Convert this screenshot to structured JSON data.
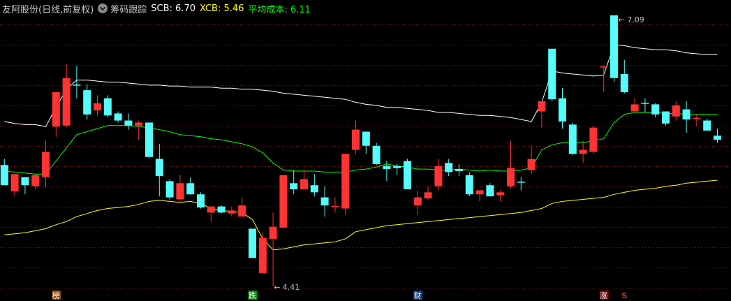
{
  "header": {
    "title": "友阿股份(日线,前复权)",
    "dropdown_icon": "chevron-down-circle-icon",
    "indicator": "筹码跟踪",
    "scb": "SCB: 6.70",
    "xcb": "XCB: 5.46",
    "avg": "平均成本: 6.11"
  },
  "colors": {
    "up": "#ff3333",
    "down": "#54fcfc",
    "scb": "#ffffff",
    "xcb": "#ffff00",
    "avg": "#00ff00",
    "grid": "#a01010",
    "background": "#000000"
  },
  "annotations": {
    "high_label": "7.09",
    "low_label": "4.41",
    "high_index": 59,
    "low_index": 26
  },
  "markers": [
    {
      "label": "榜",
      "index": 5,
      "bg": "#8b4a10",
      "color": "#ffffff"
    },
    {
      "label": "跌",
      "index": 24,
      "bg": "#0a8a0a",
      "color": "#ffffff"
    },
    {
      "label": "财",
      "index": 40,
      "bg": "#0a3a7a",
      "color": "#ffffff"
    },
    {
      "label": "涨",
      "index": 58,
      "bg": "#7a0a0a",
      "color": "#ffffff"
    },
    {
      "label": "S",
      "index": 60,
      "bg": "",
      "color": "#ff2020"
    }
  ],
  "chart_data": {
    "type": "candlestick",
    "grid": true,
    "ylim": [
      4.41,
      7.09
    ],
    "candles": [
      [
        5.61,
        5.67,
        5.41,
        5.41,
        "down"
      ],
      [
        5.35,
        5.52,
        5.3,
        5.52,
        "up"
      ],
      [
        5.49,
        5.49,
        5.32,
        5.41,
        "down"
      ],
      [
        5.4,
        5.52,
        5.37,
        5.51,
        "up"
      ],
      [
        5.49,
        5.85,
        5.39,
        5.74,
        "up"
      ],
      [
        5.99,
        6.33,
        5.89,
        6.33,
        "up"
      ],
      [
        6.0,
        6.61,
        5.98,
        6.47,
        "up"
      ],
      [
        6.4,
        6.59,
        6.27,
        6.4,
        "down"
      ],
      [
        6.35,
        6.41,
        6.06,
        6.11,
        "down"
      ],
      [
        6.15,
        6.3,
        6.1,
        6.22,
        "up"
      ],
      [
        6.27,
        6.3,
        6.08,
        6.1,
        "down"
      ],
      [
        6.12,
        6.14,
        6.03,
        6.05,
        "down"
      ],
      [
        6.05,
        6.12,
        5.96,
        6.0,
        "down"
      ],
      [
        6.0,
        6.05,
        5.86,
        6.03,
        "up"
      ],
      [
        6.03,
        6.03,
        5.68,
        5.69,
        "down"
      ],
      [
        5.67,
        5.82,
        5.3,
        5.5,
        "down"
      ],
      [
        5.45,
        5.47,
        5.27,
        5.29,
        "down"
      ],
      [
        5.27,
        5.51,
        5.25,
        5.43,
        "up"
      ],
      [
        5.43,
        5.49,
        5.32,
        5.32,
        "down"
      ],
      [
        5.32,
        5.34,
        5.18,
        5.19,
        "down"
      ],
      [
        5.14,
        5.2,
        5.05,
        5.2,
        "up"
      ],
      [
        5.2,
        5.21,
        5.13,
        5.14,
        "down"
      ],
      [
        5.13,
        5.2,
        5.1,
        5.16,
        "up"
      ],
      [
        5.1,
        5.29,
        5.1,
        5.21,
        "up"
      ],
      [
        4.98,
        4.98,
        4.69,
        4.69,
        "down"
      ],
      [
        4.54,
        4.94,
        4.54,
        4.89,
        "up"
      ],
      [
        4.88,
        5.14,
        4.41,
        5.0,
        "up"
      ],
      [
        4.99,
        5.51,
        4.99,
        5.51,
        "up"
      ],
      [
        5.43,
        5.56,
        5.32,
        5.37,
        "down"
      ],
      [
        5.37,
        5.56,
        5.37,
        5.47,
        "up"
      ],
      [
        5.41,
        5.52,
        5.3,
        5.34,
        "down"
      ],
      [
        5.29,
        5.4,
        5.1,
        5.21,
        "down"
      ],
      [
        5.2,
        5.29,
        5.14,
        5.2,
        "up"
      ],
      [
        5.18,
        5.72,
        5.12,
        5.72,
        "up"
      ],
      [
        5.76,
        6.05,
        5.72,
        5.96,
        "up"
      ],
      [
        5.94,
        5.94,
        5.72,
        5.8,
        "down"
      ],
      [
        5.8,
        5.83,
        5.61,
        5.62,
        "down"
      ],
      [
        5.6,
        5.65,
        5.45,
        5.57,
        "down"
      ],
      [
        5.6,
        5.62,
        5.51,
        5.58,
        "down"
      ],
      [
        5.65,
        5.67,
        5.37,
        5.37,
        "down"
      ],
      [
        5.21,
        5.36,
        5.12,
        5.29,
        "up"
      ],
      [
        5.28,
        5.4,
        5.27,
        5.34,
        "up"
      ],
      [
        5.4,
        5.67,
        5.36,
        5.6,
        "up"
      ],
      [
        5.63,
        5.67,
        5.5,
        5.54,
        "down"
      ],
      [
        5.57,
        5.62,
        5.5,
        5.55,
        "down"
      ],
      [
        5.51,
        5.54,
        5.3,
        5.32,
        "down"
      ],
      [
        5.32,
        5.36,
        5.25,
        5.36,
        "up"
      ],
      [
        5.41,
        5.43,
        5.3,
        5.3,
        "down"
      ],
      [
        5.31,
        5.36,
        5.25,
        5.34,
        "up"
      ],
      [
        5.4,
        5.85,
        5.38,
        5.58,
        "up"
      ],
      [
        5.44,
        5.49,
        5.36,
        5.44,
        "down"
      ],
      [
        5.56,
        5.8,
        5.52,
        5.67,
        "up"
      ],
      [
        6.14,
        6.24,
        5.98,
        6.24,
        "up"
      ],
      [
        6.76,
        6.76,
        6.24,
        6.26,
        "down"
      ],
      [
        6.27,
        6.37,
        5.97,
        6.04,
        "down"
      ],
      [
        6.01,
        6.03,
        5.71,
        5.72,
        "down"
      ],
      [
        5.72,
        5.85,
        5.63,
        5.76,
        "up"
      ],
      [
        5.74,
        6.0,
        5.72,
        5.98,
        "up"
      ],
      [
        6.58,
        6.59,
        6.33,
        6.58,
        "up"
      ],
      [
        7.09,
        7.09,
        6.43,
        6.47,
        "down"
      ],
      [
        6.51,
        6.65,
        6.32,
        6.33,
        "down"
      ],
      [
        6.14,
        6.27,
        6.14,
        6.21,
        "up"
      ],
      [
        6.22,
        6.27,
        6.13,
        6.21,
        "down"
      ],
      [
        6.21,
        6.22,
        6.08,
        6.11,
        "down"
      ],
      [
        6.14,
        6.14,
        6.0,
        6.02,
        "down"
      ],
      [
        6.09,
        6.24,
        6.05,
        6.2,
        "up"
      ],
      [
        6.16,
        6.24,
        5.93,
        6.06,
        "down"
      ],
      [
        6.07,
        6.11,
        5.99,
        6.07,
        "up"
      ],
      [
        6.05,
        6.07,
        5.95,
        5.95,
        "down"
      ],
      [
        5.9,
        5.97,
        5.83,
        5.86,
        "down"
      ]
    ],
    "series": [
      {
        "name": "SCB",
        "values": [
          6.04,
          6.02,
          6.01,
          6.01,
          5.99,
          6.18,
          6.36,
          6.45,
          6.45,
          6.44,
          6.43,
          6.43,
          6.42,
          6.41,
          6.4,
          6.4,
          6.39,
          6.39,
          6.38,
          6.38,
          6.38,
          6.37,
          6.37,
          6.36,
          6.36,
          6.35,
          6.34,
          6.32,
          6.31,
          6.3,
          6.29,
          6.28,
          6.27,
          6.26,
          6.23,
          6.21,
          6.2,
          6.18,
          6.18,
          6.17,
          6.16,
          6.15,
          6.13,
          6.13,
          6.12,
          6.11,
          6.1,
          6.1,
          6.09,
          6.08,
          6.06,
          6.04,
          6.23,
          6.54,
          6.52,
          6.51,
          6.5,
          6.49,
          6.5,
          6.8,
          6.79,
          6.77,
          6.76,
          6.75,
          6.75,
          6.74,
          6.72,
          6.71,
          6.7,
          6.7
        ]
      },
      {
        "name": "平均成本",
        "values": [
          5.55,
          5.54,
          5.53,
          5.52,
          5.52,
          5.65,
          5.78,
          5.91,
          5.94,
          5.97,
          6.0,
          6.0,
          6.0,
          5.99,
          5.98,
          5.96,
          5.94,
          5.91,
          5.9,
          5.89,
          5.87,
          5.86,
          5.84,
          5.82,
          5.79,
          5.73,
          5.63,
          5.56,
          5.55,
          5.55,
          5.55,
          5.54,
          5.54,
          5.54,
          5.56,
          5.57,
          5.59,
          5.62,
          5.6,
          5.59,
          5.57,
          5.57,
          5.56,
          5.56,
          5.57,
          5.56,
          5.55,
          5.56,
          5.55,
          5.55,
          5.56,
          5.58,
          5.76,
          5.81,
          5.83,
          5.84,
          5.83,
          5.85,
          5.87,
          6.03,
          6.11,
          6.13,
          6.13,
          6.13,
          6.12,
          6.12,
          6.11,
          6.11,
          6.11,
          6.11
        ]
      },
      {
        "name": "XCB",
        "values": [
          4.92,
          4.93,
          4.94,
          4.96,
          4.98,
          5.02,
          5.05,
          5.1,
          5.13,
          5.16,
          5.18,
          5.19,
          5.2,
          5.22,
          5.25,
          5.26,
          5.25,
          5.24,
          5.25,
          5.23,
          5.18,
          5.16,
          5.15,
          5.14,
          5.07,
          4.88,
          4.77,
          4.78,
          4.8,
          4.82,
          4.83,
          4.84,
          4.85,
          4.88,
          4.95,
          4.97,
          4.99,
          5.01,
          5.02,
          5.03,
          5.04,
          5.05,
          5.06,
          5.07,
          5.08,
          5.09,
          5.1,
          5.11,
          5.12,
          5.13,
          5.14,
          5.16,
          5.18,
          5.23,
          5.25,
          5.26,
          5.27,
          5.28,
          5.29,
          5.32,
          5.34,
          5.36,
          5.37,
          5.38,
          5.4,
          5.41,
          5.43,
          5.44,
          5.45,
          5.46
        ]
      }
    ]
  }
}
